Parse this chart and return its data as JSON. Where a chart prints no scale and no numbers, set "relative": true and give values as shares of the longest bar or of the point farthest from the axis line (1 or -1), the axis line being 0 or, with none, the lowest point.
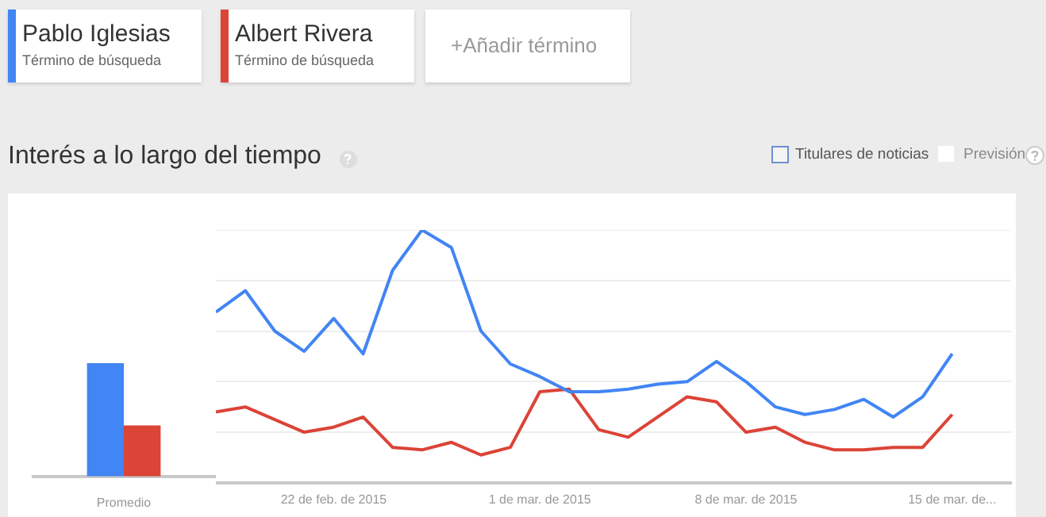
{
  "chart_data": [
    {
      "type": "bar",
      "categories": [
        "Promedio"
      ],
      "relative": true,
      "series": [
        {
          "color": "#4285f4",
          "values": [
            1
          ]
        },
        {
          "color": "#db4437",
          "values": [
            0.45
          ]
        }
      ]
    },
    {
      "type": "line",
      "title": "Interés a lo largo del tiempo",
      "legend": "top left",
      "relative": true,
      "grid": "y",
      "annotations": [
        "Término de búsqueda",
        "Término de búsqueda",
        "+Añadir término",
        "Titulares de noticias",
        "Previsión"
      ],
      "x": [
        "2015-02-18",
        "2015-02-19",
        "2015-02-20",
        "2015-02-21",
        "2015-02-22",
        "2015-02-23",
        "2015-02-24",
        "2015-02-25",
        "2015-02-26",
        "2015-02-27",
        "2015-02-28",
        "2015-03-01",
        "2015-03-02",
        "2015-03-03",
        "2015-03-04",
        "2015-03-05",
        "2015-03-06",
        "2015-03-07",
        "2015-03-08",
        "2015-03-09",
        "2015-03-10",
        "2015-03-11",
        "2015-03-12",
        "2015-03-13",
        "2015-03-14",
        "2015-03-15"
      ],
      "xlim": [
        "2015-02-18",
        "2015-03-17"
      ],
      "xticks": [
        {
          "value": "2015-02-22",
          "label": "22 de feb. de 2015"
        },
        {
          "value": "2015-03-01",
          "label": "1 de mar. de 2015"
        },
        {
          "value": "2015-03-08",
          "label": "8 de mar. de 2015"
        },
        {
          "value": "2015-03-15",
          "label": "15 de mar. de..."
        }
      ],
      "series": [
        {
          "name": "Pablo Iglesias",
          "color": "#4285f4",
          "values": [
            0.675,
            0.76,
            0.6,
            0.52,
            0.65,
            0.51,
            0.84,
            1,
            0.93,
            0.6,
            0.47,
            0.42,
            0.36,
            0.36,
            0.37,
            0.39,
            0.4,
            0.48,
            0.4,
            0.3,
            0.27,
            0.29,
            0.33,
            0.26,
            0.34,
            0.51
          ]
        },
        {
          "name": "Albert Rivera",
          "color": "#db4437",
          "values": [
            0.28,
            0.3,
            0.25,
            0.2,
            0.22,
            0.26,
            0.14,
            0.13,
            0.16,
            0.11,
            0.14,
            0.36,
            0.37,
            0.21,
            0.18,
            0.26,
            0.34,
            0.32,
            0.2,
            0.22,
            0.16,
            0.13,
            0.13,
            0.14,
            0.14,
            0.27
          ]
        }
      ]
    }
  ]
}
